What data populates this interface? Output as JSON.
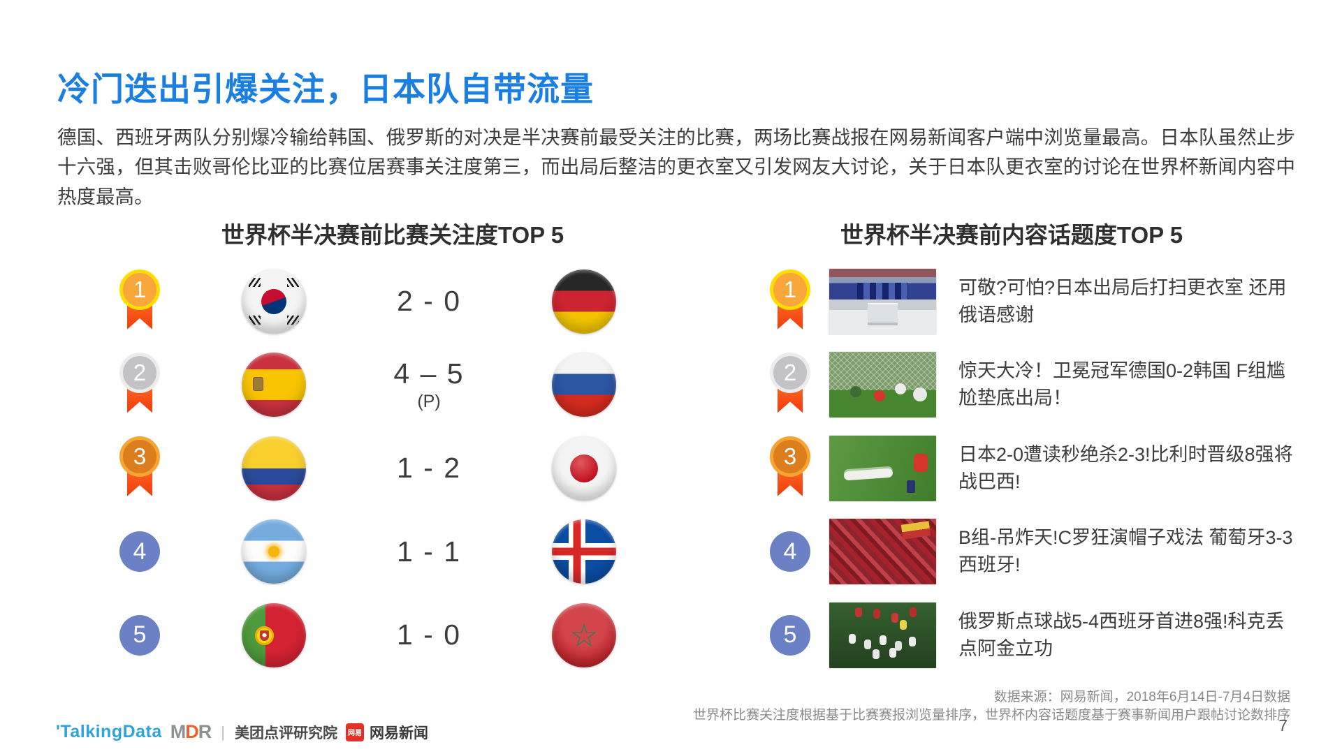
{
  "slide": {
    "title": "冷门迭出引爆关注，日本队自带流量",
    "paragraph": "德国、西班牙两队分别爆冷输给韩国、俄罗斯的对决是半决赛前最受关注的比赛，两场比赛战报在网易新闻客户端中浏览量最高。日本队虽然止步十六强，但其击败哥伦比亚的比赛位居赛事关注度第三，而出局后整洁的更衣室又引发网友大讨论，关于日本队更衣室的讨论在世界杯新闻内容中热度最高。",
    "page_number": "7"
  },
  "left_section": {
    "header": "世界杯半决赛前比赛关注度TOP 5",
    "rows": [
      {
        "rank": "1",
        "home_flag": "south-korea",
        "score": "2 - 0",
        "score_note": "",
        "away_flag": "germany"
      },
      {
        "rank": "2",
        "home_flag": "spain",
        "score": "4 – 5",
        "score_note": "(P)",
        "away_flag": "russia"
      },
      {
        "rank": "3",
        "home_flag": "colombia",
        "score": "1 - 2",
        "score_note": "",
        "away_flag": "japan"
      },
      {
        "rank": "4",
        "home_flag": "argentina",
        "score": "1 - 1",
        "score_note": "",
        "away_flag": "iceland"
      },
      {
        "rank": "5",
        "home_flag": "portugal",
        "score": "1 - 0",
        "score_note": "",
        "away_flag": "morocco"
      }
    ]
  },
  "right_section": {
    "header": "世界杯半决赛前内容话题度TOP 5",
    "rows": [
      {
        "rank": "1",
        "photo": "locker",
        "headline": "可敬?可怕?日本出局后打扫更衣室 还用俄语感谢"
      },
      {
        "rank": "2",
        "photo": "match1",
        "headline": "惊天大冷！卫冕冠军德国0-2韩国 F组尴尬垫底出局！"
      },
      {
        "rank": "3",
        "photo": "match2",
        "headline": "日本2-0遭读秒绝杀2-3!比利时晋级8强将战巴西!"
      },
      {
        "rank": "4",
        "photo": "crowd",
        "headline": "B组-吊炸天!C罗狂演帽子戏法 葡萄牙3-3西班牙!"
      },
      {
        "rank": "5",
        "photo": "celebrate",
        "headline": "俄罗斯点球战5-4西班牙首进8强!科克丢点阿金立功"
      }
    ]
  },
  "footer": {
    "source_line1": "数据来源：网易新闻，2018年6月14日-7月4日数据",
    "source_line2": "世界杯比赛关注度根据基于比赛赛报浏览量排序，世界杯内容话题度基于赛事新闻用户跟帖讨论数排序",
    "logos": {
      "talkingdata": "'TalkingData",
      "mdr_m": "M",
      "mdr_d": "D",
      "mdr_r": "R",
      "separator": "|",
      "meituan": "美团点评研究院",
      "netease_badge": "网易",
      "netease": "网易新闻"
    }
  },
  "colors": {
    "title_blue": "#1A7FE0",
    "rank_circle_blue": "#6B80C5",
    "ribbon_red": "#F03C0F",
    "gold": "#FFDD00",
    "silver": "#C2C2C7",
    "bronze": "#DD7E1E"
  }
}
